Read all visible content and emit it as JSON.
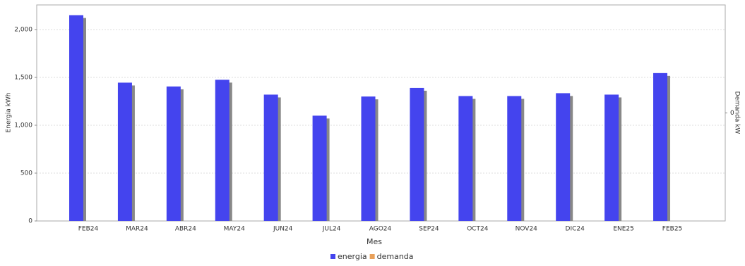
{
  "chart_data": {
    "type": "bar",
    "x_label": "Mes",
    "y_label": "Energia kWh",
    "y2_label": "Demanda kW",
    "categories": [
      "FEB24",
      "MAR24",
      "ABR24",
      "MAY24",
      "JUN24",
      "JUL24",
      "AGO24",
      "SEP24",
      "OCT24",
      "NOV24",
      "DIC24",
      "ENE25",
      "FEB25"
    ],
    "series": [
      {
        "name": "energia",
        "color": "#4444ee",
        "values": [
          2150,
          1445,
          1405,
          1475,
          1320,
          1100,
          1300,
          1390,
          1305,
          1305,
          1335,
          1320,
          1545
        ]
      },
      {
        "name": "demanda",
        "color": "#e8a05a",
        "axis": "y2",
        "values": [
          0,
          0,
          0,
          0,
          0,
          0,
          0,
          0,
          0,
          0,
          0,
          0,
          0
        ]
      }
    ],
    "ylim": [
      0,
      2257
    ],
    "yticks": [
      0,
      500,
      {
        "value": 1000,
        "label": "1,000"
      },
      {
        "value": 1500,
        "label": "1,500"
      },
      {
        "value": 2000,
        "label": "2,000"
      }
    ],
    "y2lim": [
      -1,
      1
    ],
    "y2ticks": [
      0
    ],
    "grid": true,
    "legend": "bottom"
  }
}
